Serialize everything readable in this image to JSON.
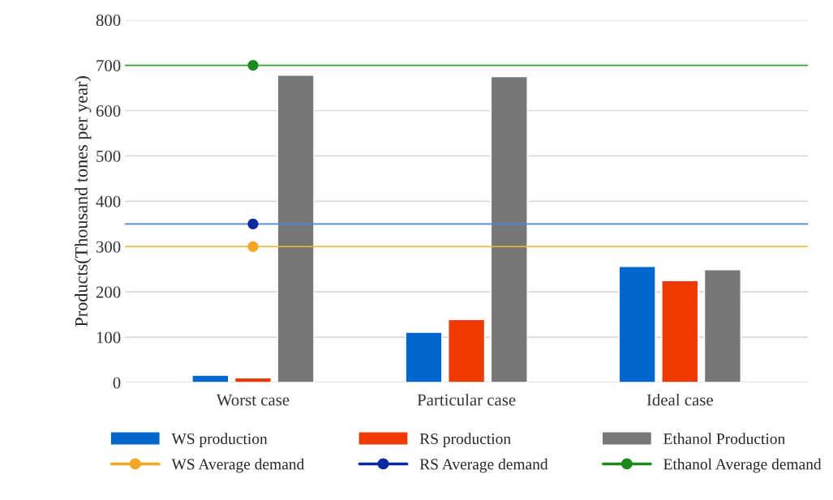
{
  "chart_data": {
    "type": "bar",
    "ylabel": "Products(Thousand tones per year)",
    "categories": [
      "Worst case",
      "Particular case",
      "Ideal case"
    ],
    "series": [
      {
        "name": "WS production",
        "color": "#0066cc",
        "values": [
          16,
          111,
          256
        ]
      },
      {
        "name": "RS production",
        "color": "#ee3a00",
        "values": [
          10,
          139,
          225
        ]
      },
      {
        "name": "Ethanol Production",
        "color": "#777777",
        "values": [
          678,
          675,
          249
        ]
      },
      {
        "name": "WS Average demand",
        "type": "scatter",
        "color": "#f5a623",
        "x": [
          "Worst case"
        ],
        "values": [
          300
        ]
      },
      {
        "name": "RS Average demand",
        "type": "scatter",
        "color": "#0a2a9e",
        "x": [
          "Worst case"
        ],
        "values": [
          350
        ]
      },
      {
        "name": "Ethanol Average demand",
        "type": "scatter",
        "color": "#1e8a1e",
        "x": [
          "Worst case"
        ],
        "values": [
          700
        ]
      }
    ],
    "ref_lines": [
      {
        "axis": "y",
        "value": 300,
        "color": "#f5b82e"
      },
      {
        "axis": "y",
        "value": 350,
        "color": "#4a86d8"
      },
      {
        "axis": "y",
        "value": 700,
        "color": "#3aa03a"
      }
    ],
    "marker": "circle",
    "ylim": [
      0,
      800
    ],
    "yticks": [
      0,
      100,
      200,
      300,
      400,
      500,
      600,
      700,
      800
    ],
    "grid": "y",
    "legend": "bottom"
  }
}
